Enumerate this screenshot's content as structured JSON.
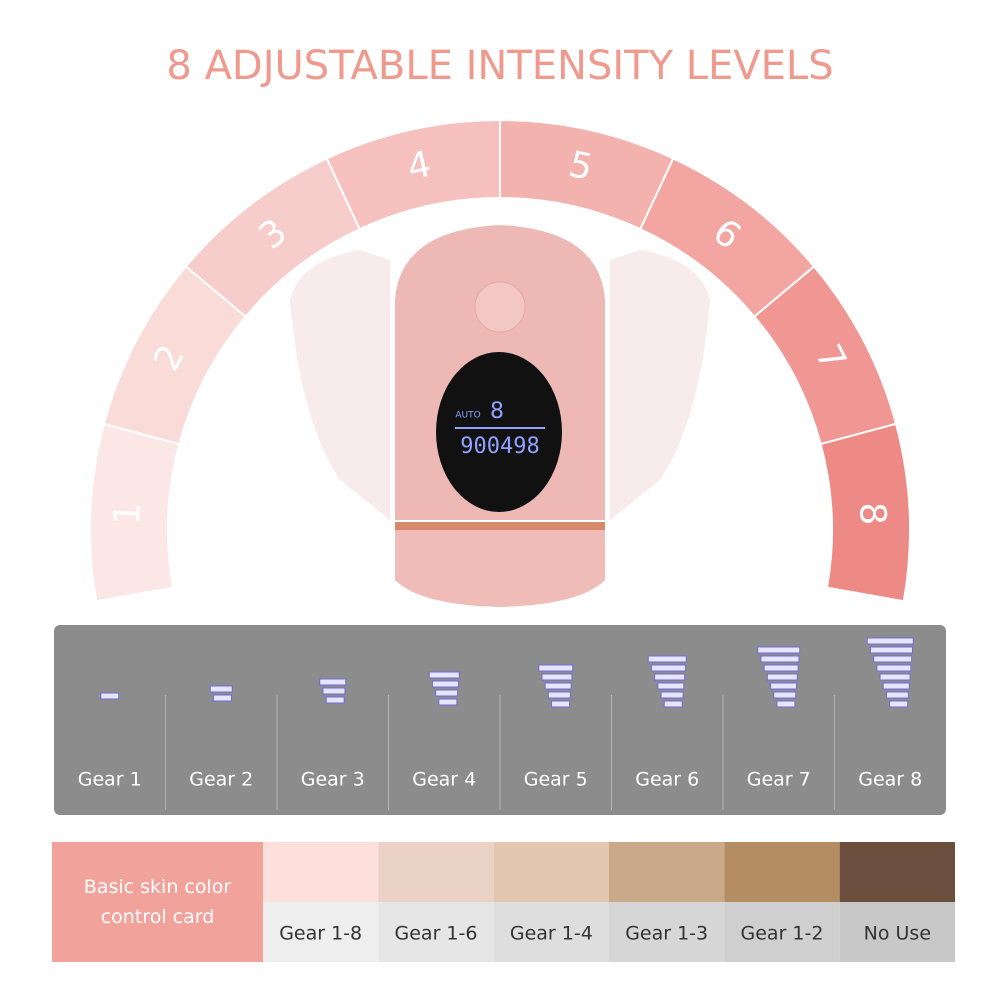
{
  "header": {
    "title": "8 ADJUSTABLE INTENSITY LEVELS"
  },
  "arc": {
    "levels": [
      "1",
      "2",
      "3",
      "4",
      "5",
      "6",
      "7",
      "8"
    ]
  },
  "device": {
    "mode": "AUTO",
    "level": "8",
    "counter": "900498"
  },
  "gears": {
    "labels": [
      "Gear 1",
      "Gear 2",
      "Gear 3",
      "Gear 4",
      "Gear 5",
      "Gear 6",
      "Gear 7",
      "Gear 8"
    ]
  },
  "skin_card": {
    "title": "Basic skin color control card",
    "swatches": [
      {
        "color": "#fde0dc",
        "label": "Gear 1-8"
      },
      {
        "color": "#ead2c6",
        "label": "Gear 1-6"
      },
      {
        "color": "#e3c7b0",
        "label": "Gear 1-4"
      },
      {
        "color": "#c9a98a",
        "label": "Gear 1-3"
      },
      {
        "color": "#b48d63",
        "label": "Gear 1-2"
      },
      {
        "color": "#6b4e3d",
        "label": "No Use"
      }
    ]
  }
}
